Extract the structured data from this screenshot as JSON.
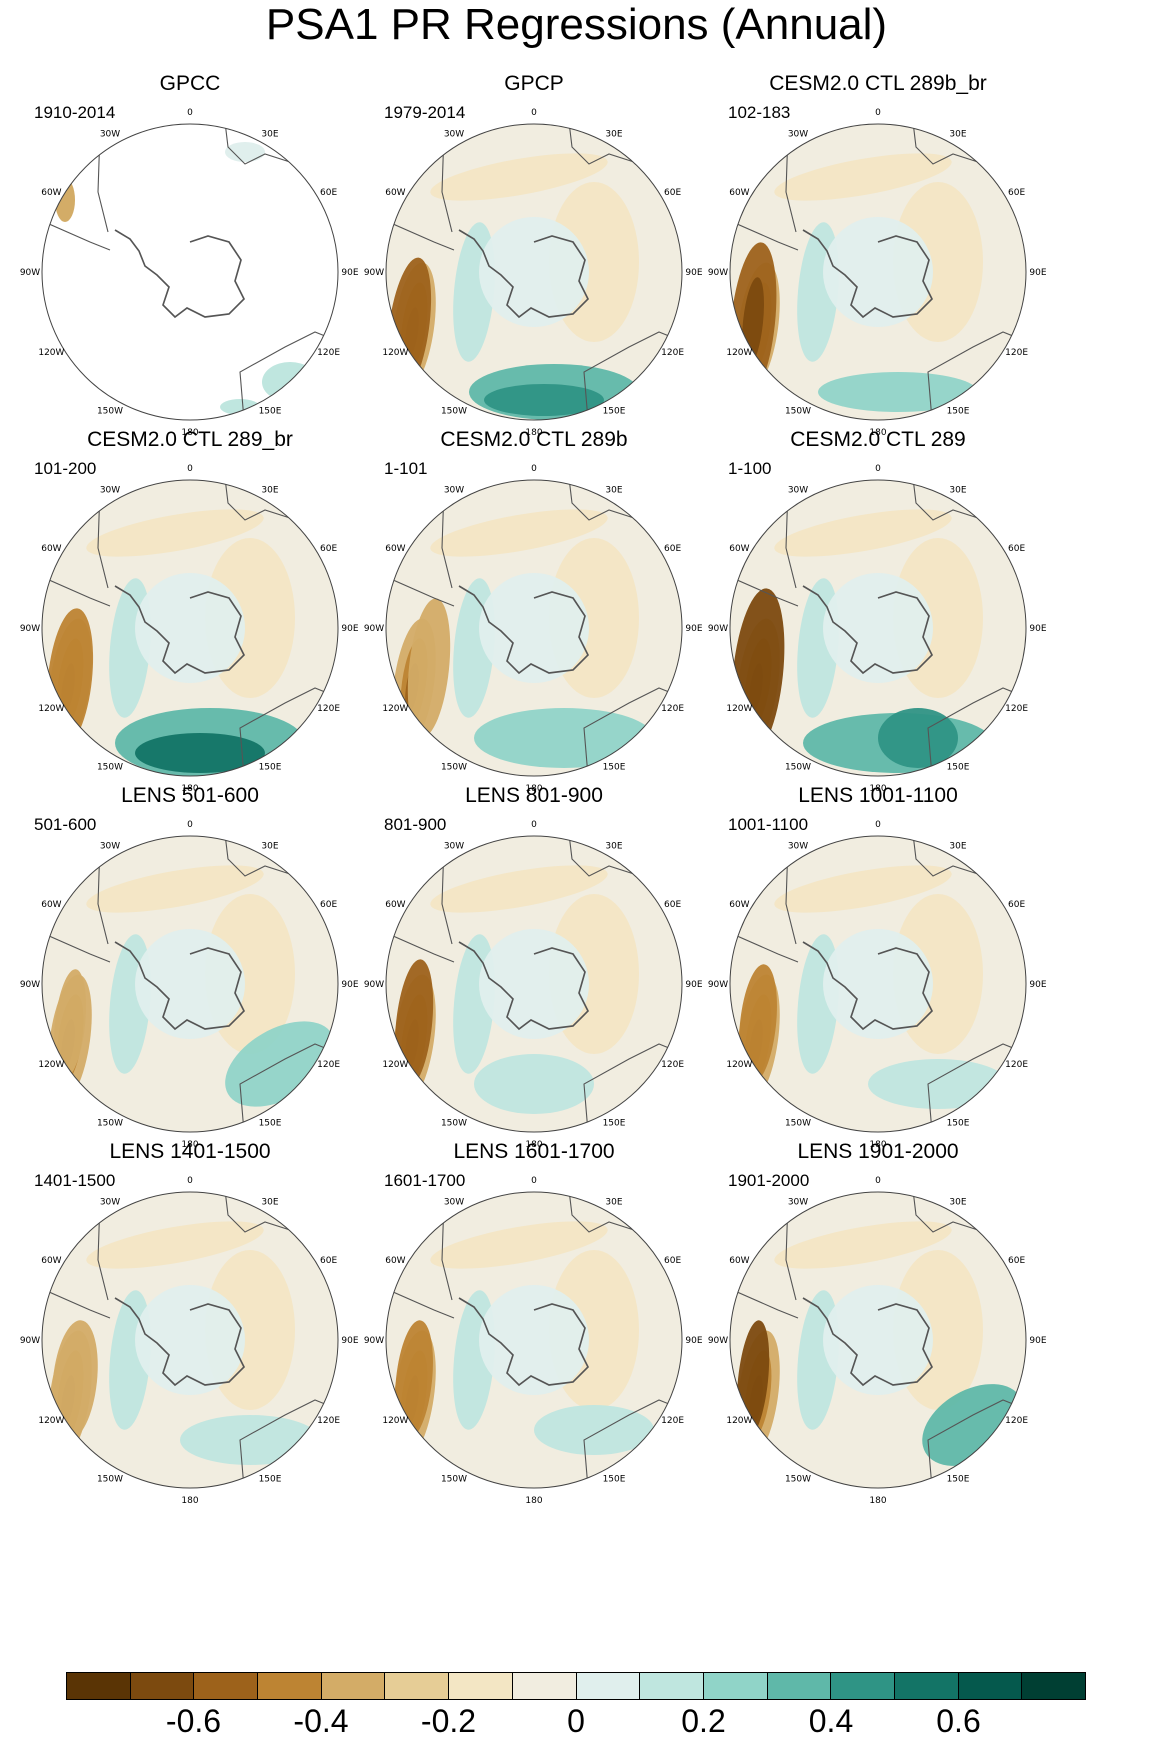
{
  "title": "PSA1 PR Regressions (Annual)",
  "lon_labels": [
    "0",
    "30E",
    "60E",
    "90E",
    "120E",
    "150E",
    "180",
    "150W",
    "120W",
    "90W",
    "60W",
    "30W"
  ],
  "panels": [
    {
      "title": "GPCC",
      "period": "1910-2014",
      "coverage": "partial"
    },
    {
      "title": "GPCP",
      "period": "1979-2014",
      "coverage": "full"
    },
    {
      "title": "CESM2.0 CTL 289b_br",
      "period": "102-183",
      "coverage": "full"
    },
    {
      "title": "CESM2.0 CTL 289_br",
      "period": "101-200",
      "coverage": "full"
    },
    {
      "title": "CESM2.0 CTL 289b",
      "period": "1-101",
      "coverage": "full"
    },
    {
      "title": "CESM2.0 CTL 289",
      "period": "1-100",
      "coverage": "full"
    },
    {
      "title": "LENS 501-600",
      "period": "501-600",
      "coverage": "full"
    },
    {
      "title": "LENS 801-900",
      "period": "801-900",
      "coverage": "full"
    },
    {
      "title": "LENS 1001-1100",
      "period": "1001-1100",
      "coverage": "full"
    },
    {
      "title": "LENS 1401-1500",
      "period": "1401-1500",
      "coverage": "full"
    },
    {
      "title": "LENS 1601-1700",
      "period": "1601-1700",
      "coverage": "full"
    },
    {
      "title": "LENS 1901-2000",
      "period": "1901-2000",
      "coverage": "full"
    }
  ],
  "colorbar": {
    "colors": [
      "#5a3405",
      "#7c4a0f",
      "#9d621b",
      "#bd8433",
      "#d3ac67",
      "#e6cd96",
      "#f3e6c4",
      "#f1ede0",
      "#e0efed",
      "#bfe6df",
      "#90d4c8",
      "#5fb8a9",
      "#2f9485",
      "#137466",
      "#05594d",
      "#003f33"
    ],
    "labels": [
      "-0.6",
      "-0.4",
      "-0.2",
      "0",
      "0.2",
      "0.4",
      "0.6"
    ]
  }
}
